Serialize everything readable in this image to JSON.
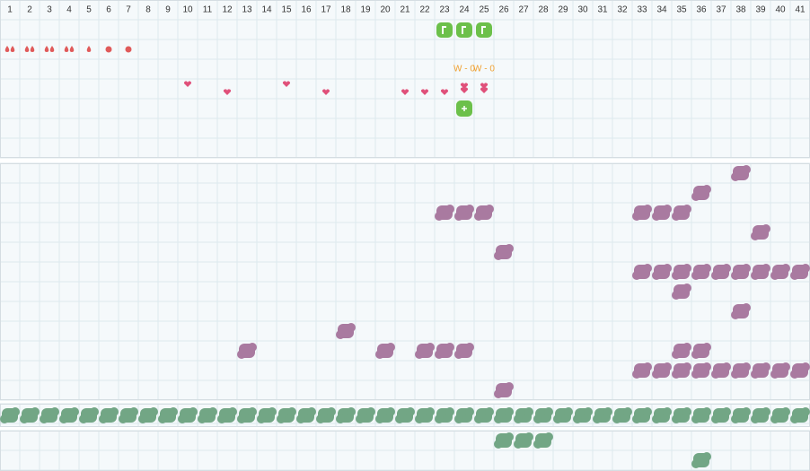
{
  "days": [
    1,
    2,
    3,
    4,
    5,
    6,
    7,
    8,
    9,
    10,
    11,
    12,
    13,
    14,
    15,
    16,
    17,
    18,
    19,
    20,
    21,
    22,
    23,
    24,
    25,
    26,
    27,
    28,
    29,
    30,
    31,
    32,
    33,
    34,
    35,
    36,
    37,
    38,
    39,
    40,
    41
  ],
  "top": {
    "flags": [
      23,
      24,
      25
    ],
    "drops_double": [
      1,
      2,
      3,
      4
    ],
    "drops_single": [
      5
    ],
    "dots": [
      6,
      7
    ],
    "labels": [
      {
        "day": 24,
        "text": "W - 0"
      },
      {
        "day": 25,
        "text": "W - 0"
      }
    ],
    "hearts_high": [
      10,
      15
    ],
    "hearts_low": [
      12,
      17,
      21,
      22,
      23
    ],
    "hearts_double": [
      24,
      25
    ],
    "plus": [
      24
    ]
  },
  "middle": {
    "rows": [
      [
        38
      ],
      [
        36
      ],
      [
        23,
        24,
        25,
        33,
        34,
        35
      ],
      [
        39
      ],
      [
        26
      ],
      [
        33,
        34,
        35,
        36,
        37,
        38,
        39,
        40,
        41
      ],
      [
        35
      ],
      [
        38
      ],
      [
        18
      ],
      [
        13,
        20,
        22,
        23,
        24,
        35,
        36
      ],
      [
        33,
        34,
        35,
        36,
        37,
        38,
        39,
        40,
        41
      ],
      [
        26
      ]
    ]
  },
  "band": [
    1,
    2,
    3,
    4,
    5,
    6,
    7,
    8,
    9,
    10,
    11,
    12,
    13,
    14,
    15,
    16,
    17,
    18,
    19,
    20,
    21,
    22,
    23,
    24,
    25,
    26,
    27,
    28,
    29,
    30,
    31,
    32,
    33,
    34,
    35,
    36,
    37,
    38,
    39,
    40,
    41
  ],
  "bottom": {
    "rows": [
      [
        26,
        27,
        28
      ],
      [
        36
      ]
    ]
  }
}
